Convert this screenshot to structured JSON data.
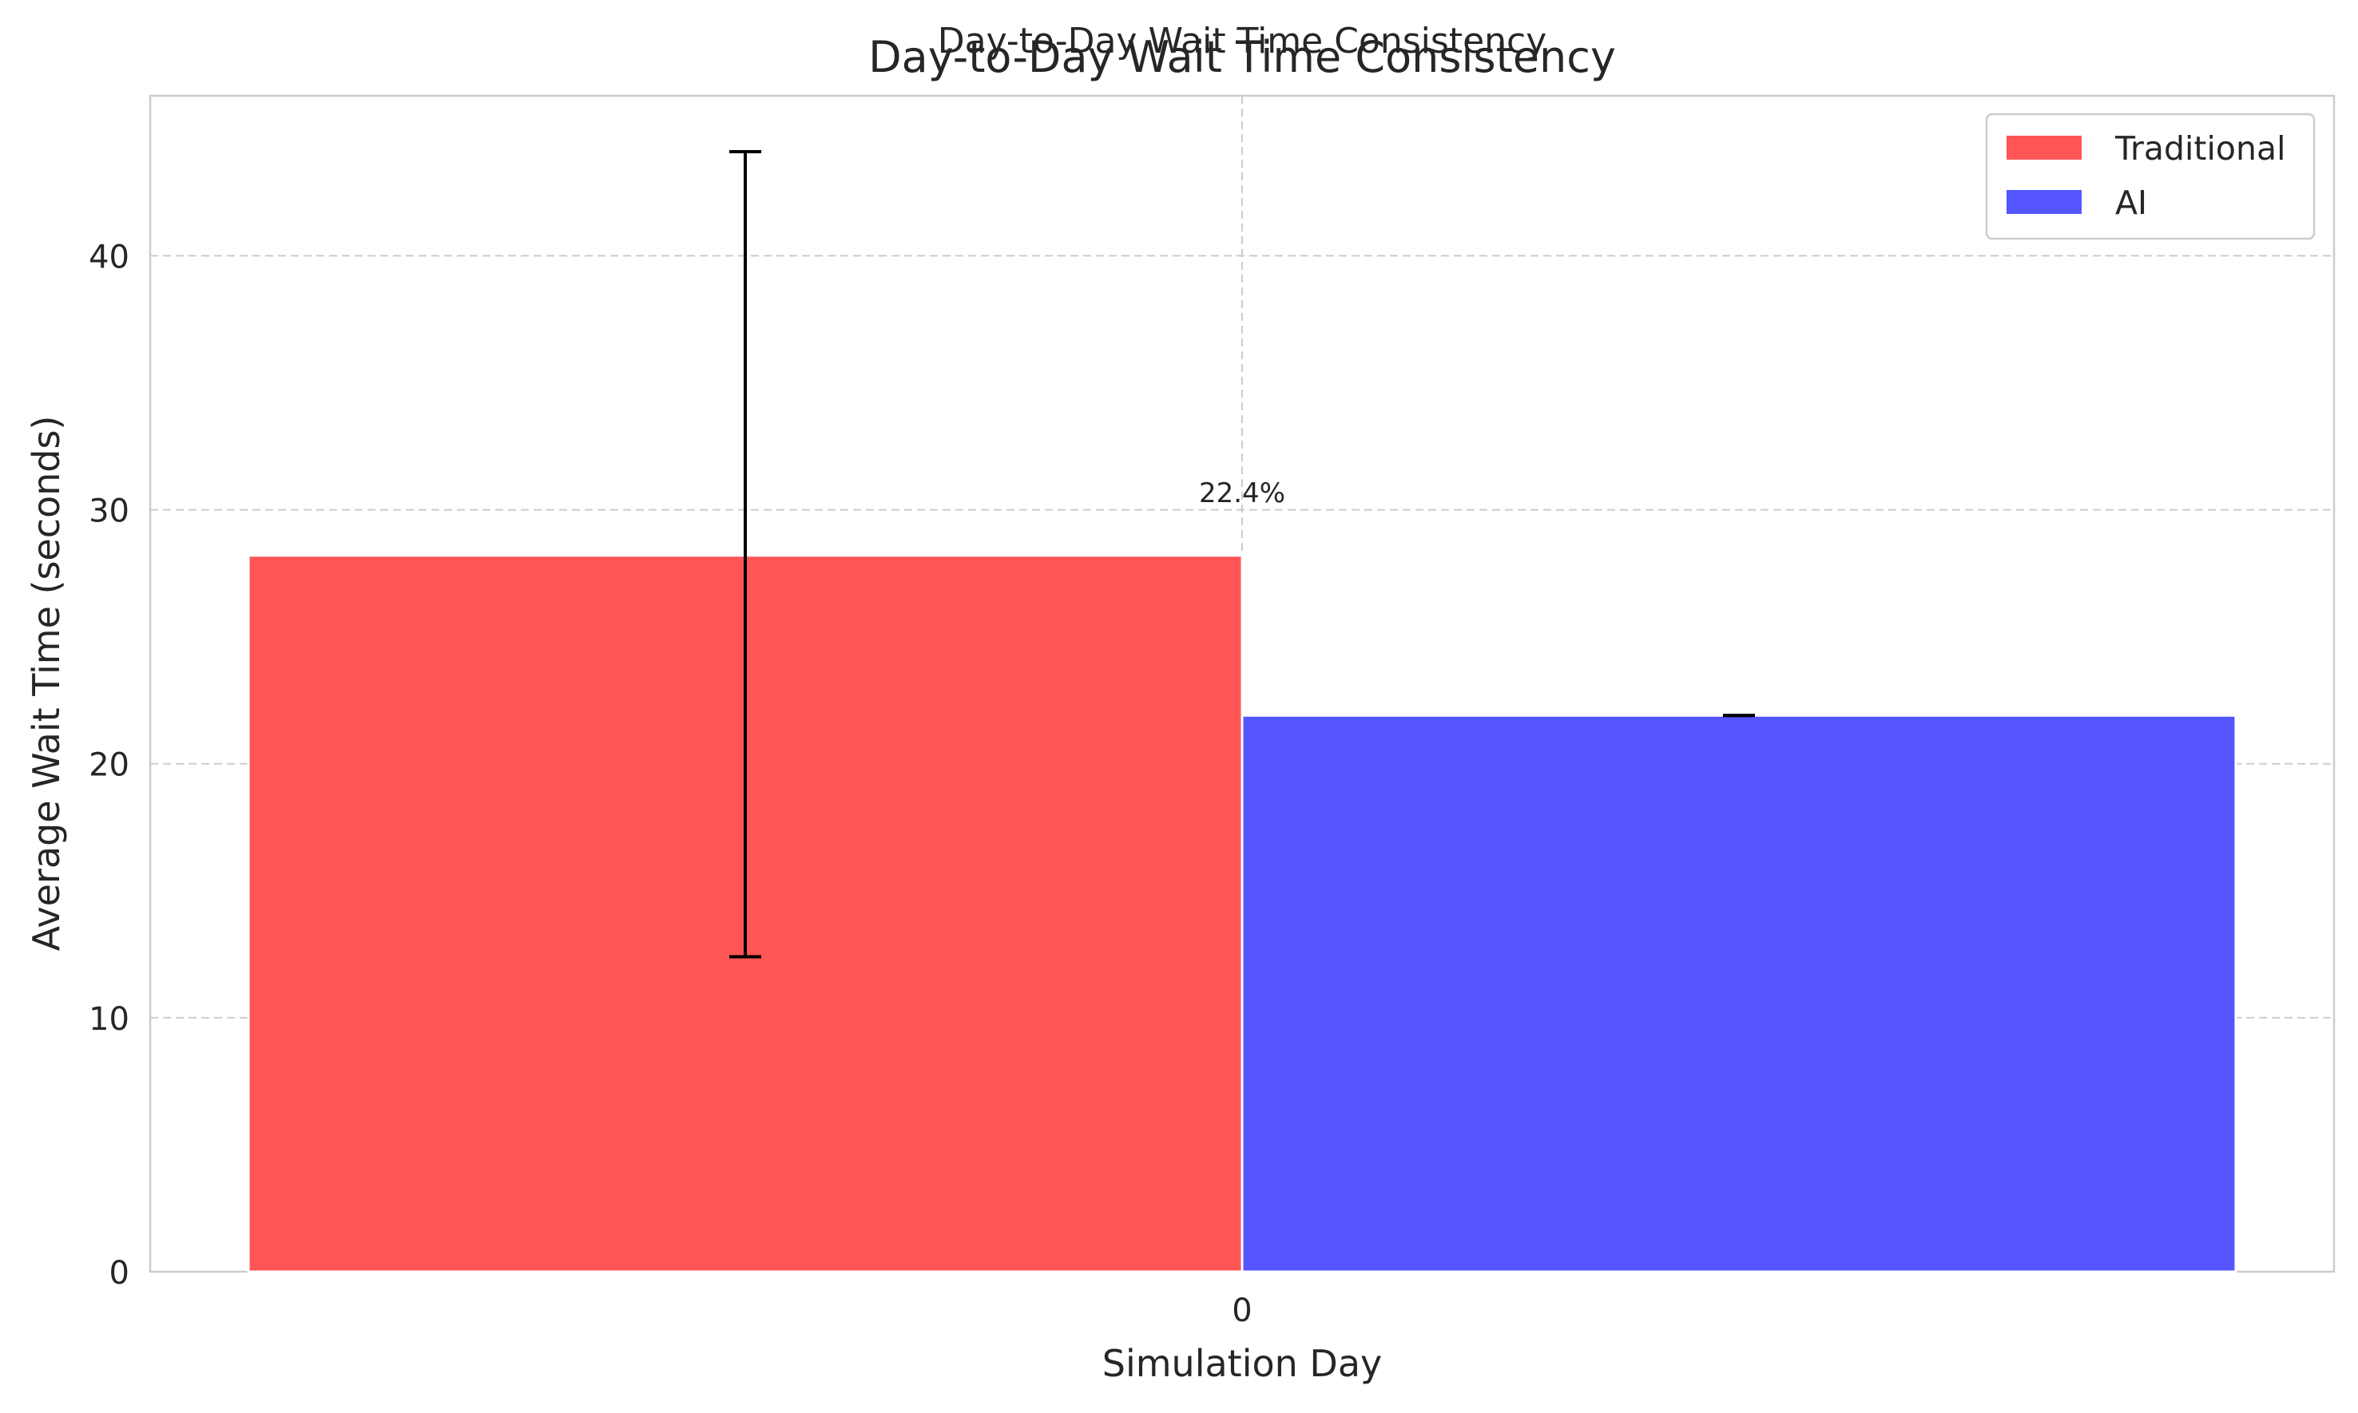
{
  "chart_data": {
    "type": "bar",
    "suptitle": "Day-to-Day Wait Time Consistency",
    "title": "Day-to-Day Wait Time Consistency",
    "xlabel": "Simulation Day",
    "ylabel": "Average Wait Time (seconds)",
    "categories": [
      "0"
    ],
    "ylim": [
      0,
      46.3
    ],
    "yticks": [
      0,
      10,
      20,
      30,
      40
    ],
    "grid": true,
    "legend_position": "upper-right",
    "series": [
      {
        "name": "Traditional",
        "values": [
          28.2
        ],
        "error_low": [
          12.4
        ],
        "error_high": [
          44.1
        ],
        "color": "#ff5555"
      },
      {
        "name": "AI",
        "values": [
          21.9
        ],
        "error_low": [
          21.9
        ],
        "error_high": [
          21.9
        ],
        "color": "#5555ff"
      }
    ],
    "annotations": [
      {
        "text": "22.4%",
        "category": "0",
        "y": 30.3
      }
    ]
  }
}
